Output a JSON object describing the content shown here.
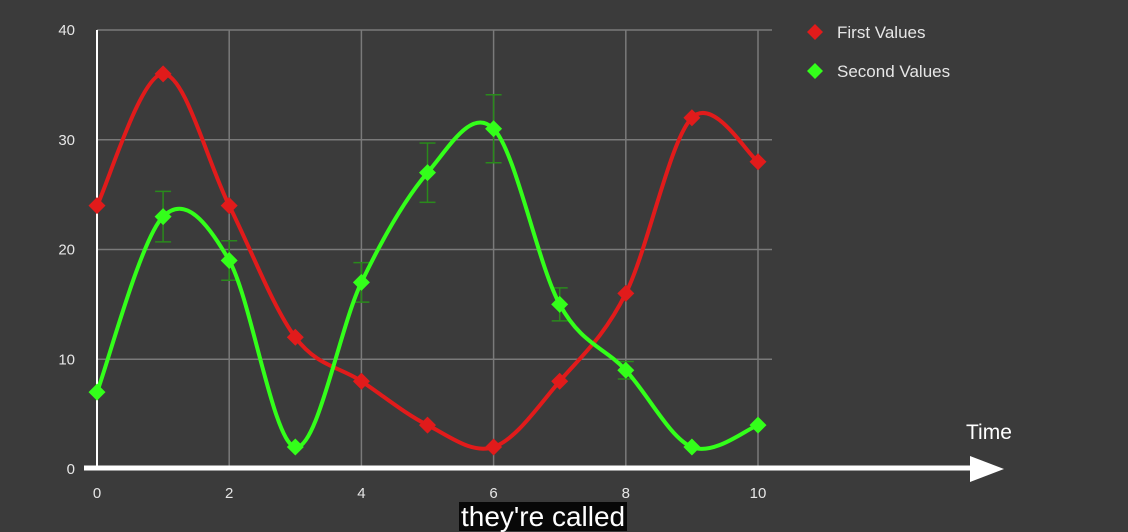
{
  "chart_data": {
    "type": "line",
    "title": "",
    "xlabel": "Time",
    "ylabel": "",
    "xlim": [
      0,
      10
    ],
    "ylim": [
      0,
      40
    ],
    "x_ticks": [
      0,
      2,
      4,
      6,
      8,
      10
    ],
    "y_ticks": [
      0,
      10,
      20,
      30,
      40
    ],
    "grid": true,
    "legend_position": "top-right",
    "smooth": true,
    "series": [
      {
        "name": "First Values",
        "color": "#e11b1b",
        "marker": "diamond",
        "x": [
          0,
          1,
          2,
          3,
          4,
          5,
          6,
          7,
          8,
          9,
          10
        ],
        "y": [
          24,
          36,
          24,
          12,
          8,
          4,
          2,
          8,
          16,
          32,
          28
        ]
      },
      {
        "name": "Second Values",
        "color": "#33ff1a",
        "marker": "diamond",
        "x": [
          0,
          1,
          2,
          3,
          4,
          5,
          6,
          7,
          8,
          9,
          10
        ],
        "y": [
          7,
          23,
          19,
          2,
          17,
          27,
          31,
          15,
          9,
          2,
          4
        ],
        "error": [
          0,
          2.3,
          1.8,
          0,
          1.8,
          2.7,
          3.1,
          1.5,
          0.8,
          0,
          0
        ]
      }
    ]
  },
  "caption": "they're called"
}
